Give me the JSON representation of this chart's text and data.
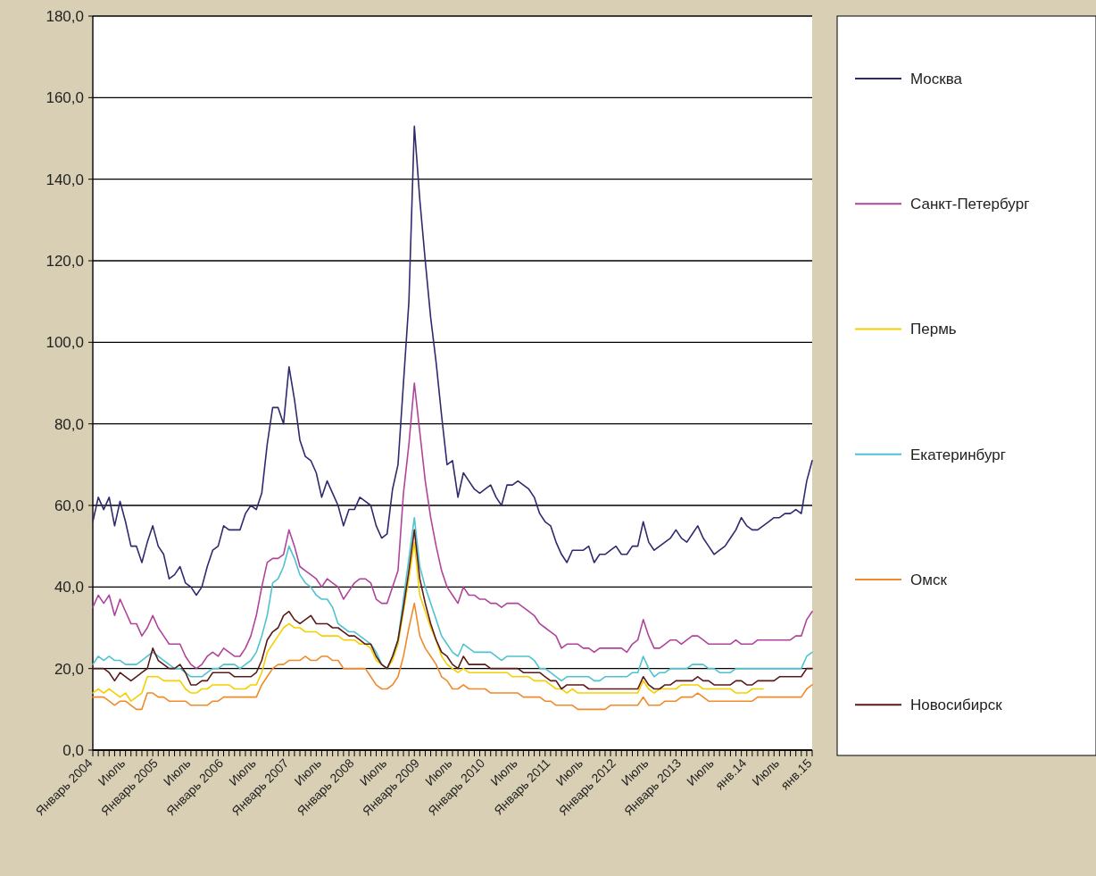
{
  "chart_data": {
    "type": "line",
    "categories": [
      "Январь 2004",
      null,
      null,
      null,
      null,
      null,
      "Июль",
      null,
      null,
      null,
      null,
      null,
      "Январь 2005",
      null,
      null,
      null,
      null,
      null,
      "Июль",
      null,
      null,
      null,
      null,
      null,
      "Январь 2006",
      null,
      null,
      null,
      null,
      null,
      "Июль",
      null,
      null,
      null,
      null,
      null,
      "Январь 2007",
      null,
      null,
      null,
      null,
      null,
      "Июль",
      null,
      null,
      null,
      null,
      null,
      "Январь 2008",
      null,
      null,
      null,
      null,
      null,
      "Июль",
      null,
      null,
      null,
      null,
      null,
      "Январь 2009",
      null,
      null,
      null,
      null,
      null,
      "Июль",
      null,
      null,
      null,
      null,
      null,
      "Январь 2010",
      null,
      null,
      null,
      null,
      null,
      "Июль",
      null,
      null,
      null,
      null,
      null,
      "Январь 2011",
      null,
      null,
      null,
      null,
      null,
      "Июль",
      null,
      null,
      null,
      null,
      null,
      "Январь 2012",
      null,
      null,
      null,
      null,
      null,
      "Июль",
      null,
      null,
      null,
      null,
      null,
      "Январь 2013",
      null,
      null,
      null,
      null,
      null,
      "Июль",
      null,
      null,
      null,
      null,
      null,
      "янв.14",
      null,
      null,
      null,
      null,
      null,
      "Июль",
      null,
      null,
      null,
      null,
      null,
      "янв.15"
    ],
    "series": [
      {
        "name": "Москва",
        "color": "#2e2a6e",
        "values": [
          56,
          62,
          59,
          62,
          55,
          61,
          56,
          50,
          50,
          46,
          51,
          55,
          50,
          48,
          42,
          43,
          45,
          41,
          40,
          38,
          40,
          45,
          49,
          50,
          55,
          54,
          54,
          54,
          58,
          60,
          59,
          63,
          75,
          84,
          84,
          80,
          94,
          86,
          76,
          72,
          71,
          68,
          62,
          66,
          63,
          60,
          55,
          59,
          59,
          62,
          61,
          60,
          55,
          52,
          53,
          64,
          70,
          90,
          110,
          153,
          135,
          120,
          106,
          95,
          82,
          70,
          71,
          62,
          68,
          66,
          64,
          63,
          64,
          65,
          62,
          60,
          65,
          65,
          66,
          65,
          64,
          62,
          58,
          56,
          55,
          51,
          48,
          46,
          49,
          49,
          49,
          50,
          46,
          48,
          48,
          49,
          50,
          48,
          48,
          50,
          50,
          56,
          51,
          49,
          50,
          51,
          52,
          54,
          52,
          51,
          53,
          55,
          52,
          50,
          48,
          49,
          50,
          52,
          54,
          57,
          55,
          54,
          54,
          55,
          56,
          57,
          57,
          58,
          58,
          59,
          58,
          66,
          71
        ]
      },
      {
        "name": "Санкт-Петербург",
        "color": "#b0449a",
        "values": [
          35,
          38,
          36,
          38,
          33,
          37,
          34,
          31,
          31,
          28,
          30,
          33,
          30,
          28,
          26,
          26,
          26,
          23,
          21,
          20,
          21,
          23,
          24,
          23,
          25,
          24,
          23,
          23,
          25,
          28,
          33,
          40,
          46,
          47,
          47,
          48,
          54,
          50,
          45,
          44,
          43,
          42,
          40,
          42,
          41,
          40,
          37,
          39,
          41,
          42,
          42,
          41,
          37,
          36,
          36,
          40,
          44,
          63,
          75,
          90,
          78,
          66,
          57,
          50,
          44,
          40,
          38,
          36,
          40,
          38,
          38,
          37,
          37,
          36,
          36,
          35,
          36,
          36,
          36,
          35,
          34,
          33,
          31,
          30,
          29,
          28,
          25,
          26,
          26,
          26,
          25,
          25,
          24,
          25,
          25,
          25,
          25,
          25,
          24,
          26,
          27,
          32,
          28,
          25,
          25,
          26,
          27,
          27,
          26,
          27,
          28,
          28,
          27,
          26,
          26,
          26,
          26,
          26,
          27,
          26,
          26,
          26,
          27,
          27,
          27,
          27,
          27,
          27,
          27,
          28,
          28,
          32,
          34
        ]
      },
      {
        "name": "Пермь",
        "color": "#f5d000",
        "values": [
          14,
          15,
          14,
          15,
          14,
          13,
          14,
          12,
          13,
          14,
          18,
          18,
          18,
          17,
          17,
          17,
          17,
          15,
          14,
          14,
          15,
          15,
          16,
          16,
          16,
          16,
          15,
          15,
          15,
          16,
          16,
          19,
          24,
          26,
          28,
          30,
          31,
          30,
          30,
          29,
          29,
          29,
          28,
          28,
          28,
          28,
          27,
          27,
          27,
          26,
          26,
          25,
          22,
          21,
          20,
          22,
          26,
          34,
          42,
          51,
          38,
          34,
          30,
          27,
          23,
          21,
          20,
          19,
          20,
          19,
          19,
          19,
          19,
          19,
          19,
          19,
          19,
          18,
          18,
          18,
          18,
          17,
          17,
          17,
          16,
          15,
          15,
          14,
          15,
          14,
          14,
          14,
          14,
          14,
          14,
          14,
          14,
          14,
          14,
          14,
          14,
          17,
          15,
          14,
          15,
          15,
          15,
          15,
          16,
          16,
          16,
          16,
          15,
          15,
          15,
          15,
          15,
          15,
          14,
          14,
          14,
          15,
          15,
          15,
          null,
          null,
          null,
          null,
          null,
          null,
          null,
          null,
          null
        ]
      },
      {
        "name": "Екатеринбург",
        "color": "#4ec3d0",
        "values": [
          21,
          23,
          22,
          23,
          22,
          22,
          21,
          21,
          21,
          22,
          23,
          24,
          23,
          22,
          21,
          20,
          20,
          19,
          18,
          18,
          18,
          19,
          20,
          20,
          21,
          21,
          21,
          20,
          21,
          22,
          24,
          28,
          33,
          41,
          42,
          45,
          50,
          47,
          43,
          41,
          40,
          38,
          37,
          37,
          35,
          31,
          30,
          29,
          29,
          28,
          27,
          26,
          24,
          21,
          20,
          23,
          27,
          37,
          47,
          57,
          45,
          40,
          36,
          32,
          28,
          26,
          24,
          23,
          26,
          25,
          24,
          24,
          24,
          24,
          23,
          22,
          23,
          23,
          23,
          23,
          23,
          22,
          20,
          20,
          19,
          18,
          17,
          18,
          18,
          18,
          18,
          18,
          17,
          17,
          18,
          18,
          18,
          18,
          18,
          19,
          19,
          23,
          20,
          18,
          19,
          19,
          20,
          20,
          20,
          20,
          21,
          21,
          21,
          20,
          20,
          19,
          19,
          19,
          20,
          20,
          20,
          20,
          20,
          20,
          20,
          20,
          20,
          20,
          20,
          20,
          20,
          23,
          24
        ]
      },
      {
        "name": "Омск",
        "color": "#f08a2a",
        "values": [
          13,
          13,
          13,
          12,
          11,
          12,
          12,
          11,
          10,
          10,
          14,
          14,
          13,
          13,
          12,
          12,
          12,
          12,
          11,
          11,
          11,
          11,
          12,
          12,
          13,
          13,
          13,
          13,
          13,
          13,
          13,
          16,
          18,
          20,
          21,
          21,
          22,
          22,
          22,
          23,
          22,
          22,
          23,
          23,
          22,
          22,
          20,
          20,
          20,
          20,
          20,
          18,
          16,
          15,
          15,
          16,
          18,
          23,
          30,
          36,
          28,
          25,
          23,
          21,
          18,
          17,
          15,
          15,
          16,
          15,
          15,
          15,
          15,
          14,
          14,
          14,
          14,
          14,
          14,
          13,
          13,
          13,
          13,
          12,
          12,
          11,
          11,
          11,
          11,
          10,
          10,
          10,
          10,
          10,
          10,
          11,
          11,
          11,
          11,
          11,
          11,
          13,
          11,
          11,
          11,
          12,
          12,
          12,
          13,
          13,
          13,
          14,
          13,
          12,
          12,
          12,
          12,
          12,
          12,
          12,
          12,
          12,
          13,
          13,
          13,
          13,
          13,
          13,
          13,
          13,
          13,
          15,
          16
        ]
      },
      {
        "name": "Новосибирск",
        "color": "#5a1a1a",
        "values": [
          20,
          20,
          20,
          19,
          17,
          19,
          18,
          17,
          18,
          19,
          20,
          25,
          22,
          21,
          20,
          20,
          21,
          19,
          16,
          16,
          17,
          17,
          19,
          19,
          19,
          19,
          18,
          18,
          18,
          18,
          19,
          22,
          27,
          29,
          30,
          33,
          34,
          32,
          31,
          32,
          33,
          31,
          31,
          31,
          30,
          30,
          29,
          28,
          28,
          27,
          26,
          26,
          23,
          21,
          20,
          23,
          27,
          35,
          44,
          54,
          42,
          36,
          31,
          27,
          24,
          23,
          21,
          20,
          23,
          21,
          21,
          21,
          21,
          20,
          20,
          20,
          20,
          20,
          20,
          19,
          19,
          19,
          19,
          18,
          17,
          17,
          15,
          16,
          16,
          16,
          16,
          15,
          15,
          15,
          15,
          15,
          15,
          15,
          15,
          15,
          15,
          18,
          16,
          15,
          15,
          16,
          16,
          17,
          17,
          17,
          17,
          18,
          17,
          17,
          16,
          16,
          16,
          16,
          17,
          17,
          16,
          16,
          17,
          17,
          17,
          17,
          18,
          18,
          18,
          18,
          18,
          20,
          20
        ]
      }
    ],
    "ylim": [
      0,
      180
    ],
    "yticks": [
      {
        "value": 0,
        "label": "0,0"
      },
      {
        "value": 20,
        "label": "20,0"
      },
      {
        "value": 40,
        "label": "40,0"
      },
      {
        "value": 60,
        "label": "60,0"
      },
      {
        "value": 80,
        "label": "80,0"
      },
      {
        "value": 100,
        "label": "100,0"
      },
      {
        "value": 120,
        "label": "120,0"
      },
      {
        "value": 140,
        "label": "140,0"
      },
      {
        "value": 160,
        "label": "160,0"
      },
      {
        "value": 180,
        "label": "180,0"
      }
    ],
    "grid": "y",
    "legend": "right",
    "marker": "none",
    "line_style": "solid"
  }
}
